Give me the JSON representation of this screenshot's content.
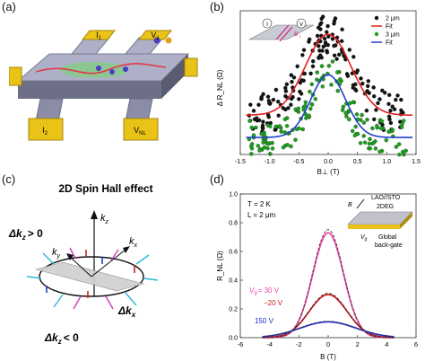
{
  "panels": {
    "a": {
      "label": "(a)",
      "tags": {
        "i1": "I",
        "i1_sub": "1",
        "i2": "I",
        "i2_sub": "2",
        "v1": "V",
        "v1_sub": "1",
        "vnl": "V",
        "vnl_sub": "NL"
      }
    },
    "b": {
      "label": "(b)",
      "inset": {
        "I": "I",
        "V": "V",
        "B": "B",
        "B_sub": "⊥"
      }
    },
    "c": {
      "label": "(c)",
      "title": "2D Spin Hall effect",
      "kz_axis": "k",
      "kz_sub": "z",
      "kx": "k",
      "kx_sub": "x",
      "ky": "k",
      "ky_sub": "y",
      "dkx": "Δk",
      "dkx_sub": "x",
      "dkz_pos": "Δk",
      "dkz_pos_sub": "z",
      "dkz_pos_rel": "> 0",
      "dkz_neg": "Δk",
      "dkz_neg_sub": "z",
      "dkz_neg_rel": "< 0"
    },
    "d": {
      "label": "(d)",
      "conditions": {
        "T": "T = 2 K",
        "L": "L = 2 μm"
      },
      "device": {
        "material": "LAO//STO",
        "layer": "2DEG",
        "gate": "Global",
        "gate2": "back-gate",
        "vg": "V",
        "vg_sub": "g",
        "B": "B"
      },
      "curve_labels": {
        "c30": "V",
        "c30_sub": "g",
        "c30_val": "= 30 V",
        "c20": "−20 V",
        "c150": "150 V"
      }
    }
  },
  "chart_data": [
    {
      "panel": "b",
      "type": "scatter",
      "xlabel": "B⊥ (T)",
      "ylabel": "Δ R_NL (Ω)",
      "xlim": [
        -1.5,
        1.5
      ],
      "x_ticks": [
        -1.5,
        -1.0,
        -0.5,
        0.0,
        0.5,
        1.0,
        1.5
      ],
      "x_tick_labels": [
        "-1.5",
        "-1.0",
        "-0.5",
        "0.0",
        "0.5",
        "1.0",
        "1.5"
      ],
      "legend": {
        "placement": "top-right",
        "entries": [
          "2 μm",
          "Fit",
          "3 μm",
          "Fit"
        ]
      },
      "series": [
        {
          "name": "2 μm",
          "kind": "points",
          "color": "#111111",
          "center": 0.0,
          "width": 0.55,
          "base": 0.25,
          "amp": 0.62,
          "noise": 0.07,
          "count": 170
        },
        {
          "name": "Fit",
          "kind": "line",
          "color": "#e02020",
          "center": 0.0,
          "width": 0.55,
          "base": 0.25,
          "amp": 0.62
        },
        {
          "name": "3 μm",
          "kind": "points",
          "color": "#1aa01a",
          "center": 0.0,
          "width": 0.42,
          "base": 0.08,
          "amp": 0.48,
          "noise": 0.06,
          "count": 150
        },
        {
          "name": "Fit",
          "kind": "line",
          "color": "#1f3fd0",
          "center": 0.0,
          "width": 0.42,
          "base": 0.08,
          "amp": 0.48
        }
      ]
    },
    {
      "panel": "d",
      "type": "line",
      "xlabel": "B (T)",
      "ylabel": "R_NL (Ω)",
      "xlim": [
        -6,
        6
      ],
      "ylim": [
        0,
        1.0
      ],
      "x_ticks": [
        -6,
        -4,
        -2,
        0,
        2,
        4,
        6
      ],
      "y_ticks": [
        0,
        0.2,
        0.4,
        0.6,
        0.8,
        1.0
      ],
      "x_tick_labels": [
        "-6",
        "-4",
        "-2",
        "0",
        "2",
        "4",
        "6"
      ],
      "y_tick_labels": [
        "0.0",
        "0.2",
        "0.4",
        "0.6",
        "0.8",
        "1.0"
      ],
      "series": [
        {
          "name": "Vg = 30 V",
          "color": "#ee44aa",
          "amp": 0.73,
          "width": 1.05,
          "base": 0.0,
          "fit_color": "#333333"
        },
        {
          "name": "−20 V",
          "color": "#cc1a1a",
          "amp": 0.3,
          "width": 1.3,
          "base": 0.0,
          "fit_color": "#333333"
        },
        {
          "name": "150 V",
          "color": "#1f2fd0",
          "amp": 0.11,
          "width": 1.9,
          "base": 0.0,
          "fit_color": "#333333"
        }
      ]
    }
  ]
}
